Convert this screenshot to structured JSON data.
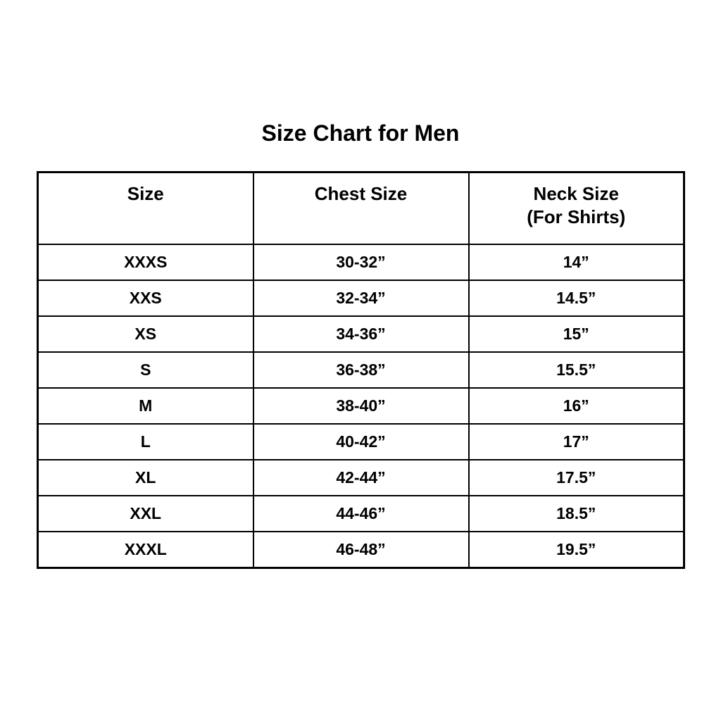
{
  "title": "Size Chart for Men",
  "colors": {
    "background": "#ffffff",
    "text": "#000000",
    "border": "#000000"
  },
  "chart_data": {
    "type": "table",
    "title": "Size Chart for Men",
    "columns": [
      "Size",
      "Chest Size",
      "Neck Size (For Shirts)"
    ],
    "header": {
      "size": "Size",
      "chest": "Chest Size",
      "neck_line1": "Neck Size",
      "neck_line2": "(For Shirts)"
    },
    "rows": [
      {
        "size": "XXXS",
        "chest": "30-32”",
        "neck": "14”"
      },
      {
        "size": "XXS",
        "chest": "32-34”",
        "neck": "14.5”"
      },
      {
        "size": "XS",
        "chest": "34-36”",
        "neck": "15”"
      },
      {
        "size": "S",
        "chest": "36-38”",
        "neck": "15.5”"
      },
      {
        "size": "M",
        "chest": "38-40”",
        "neck": "16”"
      },
      {
        "size": "L",
        "chest": "40-42”",
        "neck": "17”"
      },
      {
        "size": "XL",
        "chest": "42-44”",
        "neck": "17.5”"
      },
      {
        "size": "XXL",
        "chest": "44-46”",
        "neck": "18.5”"
      },
      {
        "size": "XXXL",
        "chest": "46-48”",
        "neck": "19.5”"
      }
    ]
  }
}
